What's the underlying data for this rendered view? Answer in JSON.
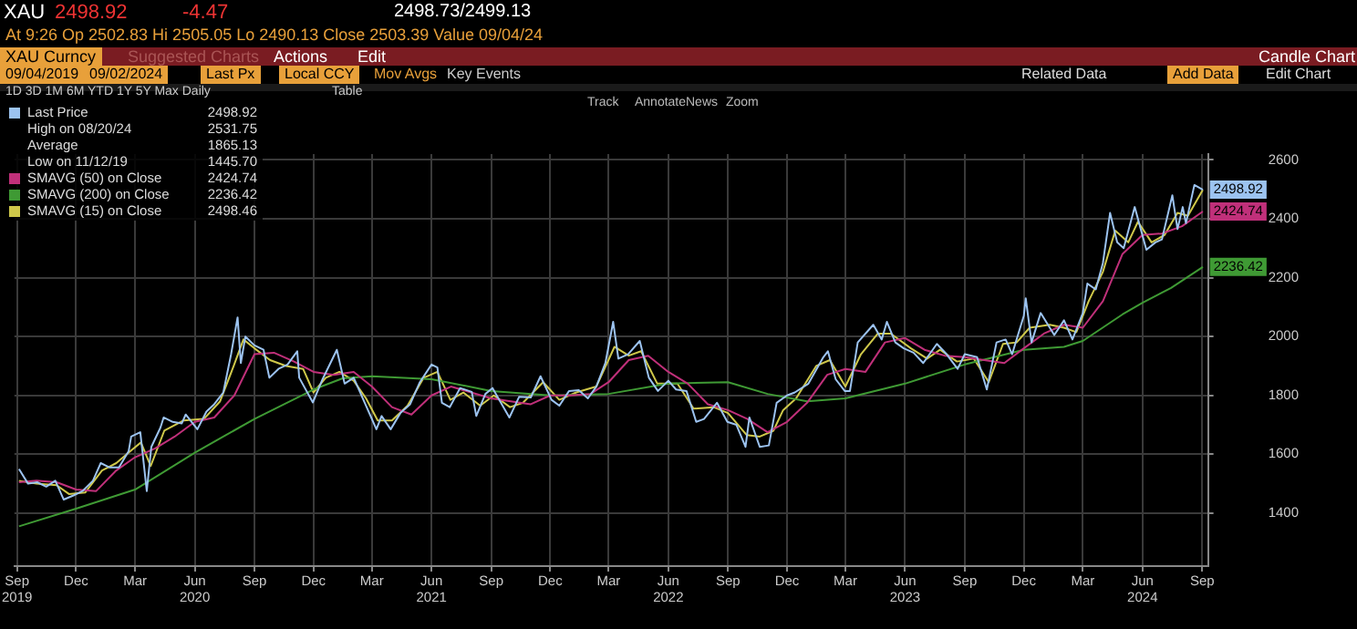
{
  "chart_data": {
    "type": "line",
    "marker": "none",
    "grid": true,
    "legend": "top left",
    "xlim": [
      "2019-08-28",
      "2024-09-10"
    ],
    "ylim": [
      1220,
      2620
    ],
    "yticks": [
      1400,
      1600,
      1800,
      2000,
      2200,
      2400,
      2600
    ],
    "xticks": [
      {
        "value": "2019-09-01",
        "label": "Sep\n2019"
      },
      {
        "value": "2019-12-01",
        "label": "Dec"
      },
      {
        "value": "2020-03-01",
        "label": "Mar"
      },
      {
        "value": "2020-06-01",
        "label": "Jun\n2020"
      },
      {
        "value": "2020-09-01",
        "label": "Sep"
      },
      {
        "value": "2020-12-01",
        "label": "Dec"
      },
      {
        "value": "2021-03-01",
        "label": "Mar"
      },
      {
        "value": "2021-06-01",
        "label": "Jun\n2021"
      },
      {
        "value": "2021-09-01",
        "label": "Sep"
      },
      {
        "value": "2021-12-01",
        "label": "Dec"
      },
      {
        "value": "2022-03-01",
        "label": "Mar"
      },
      {
        "value": "2022-06-01",
        "label": "Jun\n2022"
      },
      {
        "value": "2022-09-01",
        "label": "Sep"
      },
      {
        "value": "2022-12-01",
        "label": "Dec"
      },
      {
        "value": "2023-03-01",
        "label": "Mar"
      },
      {
        "value": "2023-06-01",
        "label": "Jun\n2023"
      },
      {
        "value": "2023-09-01",
        "label": "Sep"
      },
      {
        "value": "2023-12-01",
        "label": "Dec"
      },
      {
        "value": "2024-03-01",
        "label": "Mar"
      },
      {
        "value": "2024-06-01",
        "label": "Jun\n2024"
      },
      {
        "value": "2024-09-01",
        "label": "Sep"
      }
    ],
    "series": [
      {
        "name": "Last Price",
        "color": "#9cc3f0",
        "x": [
          "2019-09-04",
          "2019-09-18",
          "2019-10-02",
          "2019-10-16",
          "2019-10-30",
          "2019-11-12",
          "2019-11-27",
          "2019-12-11",
          "2019-12-27",
          "2020-01-08",
          "2020-01-22",
          "2020-02-05",
          "2020-02-20",
          "2020-02-24",
          "2020-03-09",
          "2020-03-19",
          "2020-03-26",
          "2020-04-09",
          "2020-04-14",
          "2020-04-28",
          "2020-05-12",
          "2020-05-18",
          "2020-06-05",
          "2020-06-19",
          "2020-07-01",
          "2020-07-15",
          "2020-07-27",
          "2020-08-06",
          "2020-08-11",
          "2020-08-18",
          "2020-09-01",
          "2020-09-15",
          "2020-09-24",
          "2020-10-08",
          "2020-10-22",
          "2020-11-06",
          "2020-11-09",
          "2020-11-30",
          "2020-12-15",
          "2021-01-06",
          "2021-01-18",
          "2021-02-01",
          "2021-02-18",
          "2021-03-08",
          "2021-03-16",
          "2021-03-30",
          "2021-04-14",
          "2021-04-29",
          "2021-05-14",
          "2021-06-01",
          "2021-06-10",
          "2021-06-17",
          "2021-06-29",
          "2021-07-15",
          "2021-08-02",
          "2021-08-09",
          "2021-08-23",
          "2021-09-03",
          "2021-09-29",
          "2021-10-14",
          "2021-11-01",
          "2021-11-16",
          "2021-12-03",
          "2021-12-15",
          "2021-12-30",
          "2022-01-14",
          "2022-01-28",
          "2022-02-10",
          "2022-02-24",
          "2022-03-08",
          "2022-03-16",
          "2022-03-31",
          "2022-04-18",
          "2022-05-02",
          "2022-05-16",
          "2022-06-01",
          "2022-06-13",
          "2022-06-29",
          "2022-07-14",
          "2022-07-26",
          "2022-08-15",
          "2022-08-31",
          "2022-09-14",
          "2022-09-28",
          "2022-10-04",
          "2022-10-20",
          "2022-11-03",
          "2022-11-15",
          "2022-12-01",
          "2022-12-13",
          "2023-01-03",
          "2023-01-26",
          "2023-02-02",
          "2023-02-14",
          "2023-02-28",
          "2023-03-08",
          "2023-03-20",
          "2023-04-13",
          "2023-04-26",
          "2023-05-04",
          "2023-05-17",
          "2023-05-30",
          "2023-06-14",
          "2023-06-29",
          "2023-07-20",
          "2023-08-04",
          "2023-08-21",
          "2023-09-01",
          "2023-09-20",
          "2023-10-05",
          "2023-10-20",
          "2023-11-03",
          "2023-11-13",
          "2023-12-01",
          "2023-12-04",
          "2023-12-13",
          "2023-12-27",
          "2024-01-17",
          "2024-02-01",
          "2024-02-14",
          "2024-03-01",
          "2024-03-08",
          "2024-03-21",
          "2024-04-01",
          "2024-04-12",
          "2024-04-23",
          "2024-05-03",
          "2024-05-20",
          "2024-06-07",
          "2024-06-21",
          "2024-07-01",
          "2024-07-17",
          "2024-07-25",
          "2024-08-02",
          "2024-08-07",
          "2024-08-20",
          "2024-09-02"
        ],
        "values": [
          1550,
          1500,
          1505,
          1490,
          1510,
          1446,
          1460,
          1475,
          1510,
          1570,
          1555,
          1555,
          1610,
          1660,
          1675,
          1475,
          1625,
          1690,
          1725,
          1710,
          1705,
          1735,
          1685,
          1745,
          1770,
          1810,
          1940,
          2065,
          1910,
          2000,
          1970,
          1955,
          1860,
          1890,
          1905,
          1950,
          1860,
          1776,
          1855,
          1955,
          1840,
          1860,
          1775,
          1685,
          1730,
          1685,
          1740,
          1770,
          1845,
          1905,
          1895,
          1775,
          1760,
          1825,
          1812,
          1730,
          1805,
          1825,
          1725,
          1795,
          1793,
          1865,
          1785,
          1765,
          1815,
          1818,
          1790,
          1830,
          1910,
          2050,
          1925,
          1940,
          1985,
          1860,
          1815,
          1850,
          1820,
          1815,
          1710,
          1720,
          1775,
          1710,
          1700,
          1625,
          1725,
          1625,
          1630,
          1775,
          1800,
          1810,
          1840,
          1930,
          1950,
          1855,
          1815,
          1815,
          1980,
          2040,
          1990,
          2050,
          1980,
          1960,
          1945,
          1910,
          1975,
          1940,
          1890,
          1940,
          1930,
          1820,
          1980,
          1990,
          1940,
          2070,
          2130,
          1980,
          2080,
          2005,
          2055,
          1990,
          2080,
          2180,
          2160,
          2250,
          2420,
          2320,
          2300,
          2440,
          2295,
          2320,
          2330,
          2480,
          2365,
          2440,
          2385,
          2515,
          2498.92
        ],
        "value_labels": [
          null,
          null,
          null,
          null,
          null,
          null,
          null,
          null,
          null,
          null,
          null,
          null,
          null,
          null,
          null,
          null,
          null,
          null,
          null,
          null,
          null,
          null,
          null,
          null,
          null,
          null,
          null,
          null,
          null,
          null,
          null,
          null,
          null,
          null,
          null,
          null,
          null,
          null,
          null,
          null,
          null,
          null,
          null,
          null,
          null,
          null,
          null,
          null,
          null,
          null,
          null,
          null,
          null,
          null,
          null,
          null,
          null,
          null,
          null,
          null,
          null,
          null,
          null,
          null,
          null,
          null,
          null,
          null,
          null,
          null,
          null,
          null,
          null,
          null,
          null,
          null,
          null,
          null,
          null,
          null,
          null,
          null,
          null,
          null,
          null,
          null,
          null,
          null,
          null,
          null,
          null,
          null,
          null,
          null,
          null,
          null,
          null,
          null,
          null,
          null,
          null,
          null,
          null,
          null,
          null,
          null,
          null,
          null,
          null,
          null,
          null,
          null,
          null,
          null,
          null,
          null,
          null,
          null,
          null,
          null,
          null,
          null,
          null,
          null,
          null,
          null,
          null,
          null,
          null,
          null,
          null,
          null,
          null,
          null,
          null,
          null,
          "2498.92"
        ]
      },
      {
        "name": "SMAVG (50) on Close",
        "color": "#c0307a",
        "x": [
          "2019-09-04",
          "2019-10-01",
          "2019-11-01",
          "2019-12-01",
          "2020-01-01",
          "2020-02-01",
          "2020-03-01",
          "2020-04-01",
          "2020-05-01",
          "2020-06-01",
          "2020-07-01",
          "2020-08-01",
          "2020-09-01",
          "2020-10-01",
          "2020-11-01",
          "2020-12-01",
          "2021-01-01",
          "2021-02-01",
          "2021-03-01",
          "2021-04-01",
          "2021-05-01",
          "2021-06-01",
          "2021-07-01",
          "2021-08-01",
          "2021-09-01",
          "2021-10-01",
          "2021-11-01",
          "2021-12-01",
          "2022-01-01",
          "2022-02-01",
          "2022-03-01",
          "2022-04-01",
          "2022-05-01",
          "2022-06-01",
          "2022-07-01",
          "2022-08-01",
          "2022-09-01",
          "2022-10-01",
          "2022-11-01",
          "2022-12-01",
          "2023-01-01",
          "2023-02-01",
          "2023-03-01",
          "2023-04-01",
          "2023-05-01",
          "2023-06-01",
          "2023-07-01",
          "2023-08-01",
          "2023-09-01",
          "2023-10-01",
          "2023-11-01",
          "2023-12-01",
          "2024-01-01",
          "2024-02-01",
          "2024-03-01",
          "2024-04-01",
          "2024-05-01",
          "2024-06-01",
          "2024-07-01",
          "2024-08-01",
          "2024-09-02"
        ],
        "values": [
          1505,
          1510,
          1505,
          1480,
          1475,
          1545,
          1590,
          1620,
          1660,
          1710,
          1725,
          1800,
          1940,
          1945,
          1915,
          1880,
          1870,
          1880,
          1830,
          1760,
          1735,
          1800,
          1830,
          1810,
          1790,
          1780,
          1770,
          1800,
          1800,
          1805,
          1845,
          1920,
          1935,
          1880,
          1840,
          1770,
          1750,
          1720,
          1675,
          1710,
          1775,
          1870,
          1890,
          1880,
          1980,
          1995,
          1955,
          1935,
          1930,
          1920,
          1910,
          1960,
          2010,
          2040,
          2030,
          2120,
          2280,
          2345,
          2350,
          2375,
          2424.74
        ],
        "value_labels": [
          null,
          null,
          null,
          null,
          null,
          null,
          null,
          null,
          null,
          null,
          null,
          null,
          null,
          null,
          null,
          null,
          null,
          null,
          null,
          null,
          null,
          null,
          null,
          null,
          null,
          null,
          null,
          null,
          null,
          null,
          null,
          null,
          null,
          null,
          null,
          null,
          null,
          null,
          null,
          null,
          null,
          null,
          null,
          null,
          null,
          null,
          null,
          null,
          null,
          null,
          null,
          null,
          null,
          null,
          null,
          null,
          null,
          null,
          null,
          null,
          "2424.74"
        ]
      },
      {
        "name": "SMAVG (200) on Close",
        "color": "#3f9a34",
        "x": [
          "2019-09-04",
          "2019-12-01",
          "2020-03-01",
          "2020-06-01",
          "2020-07-15",
          "2020-09-01",
          "2020-12-01",
          "2021-01-15",
          "2021-03-01",
          "2021-06-01",
          "2021-09-01",
          "2021-12-01",
          "2022-03-01",
          "2022-06-01",
          "2022-09-01",
          "2022-11-01",
          "2023-01-01",
          "2023-03-01",
          "2023-06-01",
          "2023-09-01",
          "2023-12-01",
          "2024-02-01",
          "2024-03-01",
          "2024-05-01",
          "2024-06-01",
          "2024-07-15",
          "2024-09-02"
        ],
        "values": [
          1355,
          1415,
          1480,
          1605,
          1660,
          1720,
          1820,
          1858,
          1865,
          1855,
          1815,
          1800,
          1805,
          1840,
          1845,
          1805,
          1780,
          1790,
          1840,
          1905,
          1955,
          1965,
          1985,
          2075,
          2115,
          2165,
          2236.42
        ],
        "value_labels": [
          null,
          null,
          null,
          null,
          null,
          null,
          null,
          null,
          null,
          null,
          null,
          null,
          null,
          null,
          null,
          null,
          null,
          null,
          null,
          null,
          null,
          null,
          null,
          null,
          null,
          null,
          "2236.42"
        ]
      },
      {
        "name": "SMAVG (15) on Close",
        "color": "#cfc84a",
        "x": [
          "2019-09-04",
          "2019-10-01",
          "2019-11-01",
          "2019-11-20",
          "2019-12-15",
          "2020-01-10",
          "2020-02-01",
          "2020-02-25",
          "2020-03-10",
          "2020-03-25",
          "2020-04-15",
          "2020-05-15",
          "2020-06-15",
          "2020-07-10",
          "2020-07-31",
          "2020-08-15",
          "2020-09-01",
          "2020-09-25",
          "2020-10-20",
          "2020-11-15",
          "2020-12-01",
          "2020-12-20",
          "2021-01-10",
          "2021-02-01",
          "2021-02-20",
          "2021-03-10",
          "2021-04-01",
          "2021-04-25",
          "2021-05-20",
          "2021-06-10",
          "2021-06-30",
          "2021-07-20",
          "2021-08-15",
          "2021-09-05",
          "2021-09-30",
          "2021-10-20",
          "2021-11-20",
          "2021-12-15",
          "2022-01-10",
          "2022-02-10",
          "2022-03-10",
          "2022-04-01",
          "2022-04-20",
          "2022-05-15",
          "2022-06-15",
          "2022-07-10",
          "2022-08-10",
          "2022-09-01",
          "2022-09-30",
          "2022-10-20",
          "2022-11-10",
          "2022-11-25",
          "2022-12-15",
          "2023-01-15",
          "2023-02-05",
          "2023-03-01",
          "2023-03-25",
          "2023-04-20",
          "2023-05-10",
          "2023-06-10",
          "2023-07-05",
          "2023-07-25",
          "2023-08-20",
          "2023-09-15",
          "2023-10-08",
          "2023-10-30",
          "2023-11-20",
          "2023-12-10",
          "2024-01-10",
          "2024-02-01",
          "2024-02-20",
          "2024-03-10",
          "2024-04-01",
          "2024-04-20",
          "2024-05-10",
          "2024-05-25",
          "2024-06-15",
          "2024-07-05",
          "2024-07-25",
          "2024-08-10",
          "2024-09-02"
        ],
        "values": [
          1510,
          1500,
          1495,
          1465,
          1470,
          1545,
          1570,
          1615,
          1640,
          1560,
          1680,
          1715,
          1720,
          1780,
          1900,
          1990,
          1960,
          1920,
          1900,
          1890,
          1810,
          1860,
          1880,
          1850,
          1790,
          1715,
          1715,
          1765,
          1860,
          1880,
          1785,
          1810,
          1765,
          1800,
          1760,
          1775,
          1845,
          1785,
          1810,
          1830,
          1965,
          1935,
          1950,
          1840,
          1840,
          1755,
          1760,
          1740,
          1665,
          1660,
          1680,
          1750,
          1790,
          1900,
          1920,
          1830,
          1940,
          2010,
          2010,
          1960,
          1925,
          1955,
          1915,
          1925,
          1845,
          1975,
          1980,
          2030,
          2040,
          2030,
          2015,
          2120,
          2220,
          2360,
          2320,
          2390,
          2320,
          2345,
          2420,
          2410,
          2498.46
        ]
      }
    ],
    "annotations": [
      "XAU",
      "2498.92",
      "-4.47",
      "2498.73/2499.13",
      "At 9:26  Op 2502.83  Hi 2505.05  Lo 2490.13  Close 2503.39  Value 09/04/24",
      "XAU Curncy",
      "Suggested Charts",
      "Actions",
      "Edit",
      "Candle Chart",
      "09/04/2019",
      "09/02/2024",
      "Last Px",
      "Local CCY",
      "Mov Avgs",
      "Key Events",
      "1D 3D 1M 6M YTD 1Y 5Y Max Daily",
      "Table",
      "Related Data",
      "Add Data",
      "Edit Chart",
      "Track",
      "Annotate",
      "News",
      "Zoom",
      "High on 08/20/24",
      "2531.75",
      "Average",
      "1865.13",
      "Low on 11/12/19",
      "1445.70",
      "2498.92",
      "2424.74",
      "2236.42",
      "2498.46"
    ]
  }
}
